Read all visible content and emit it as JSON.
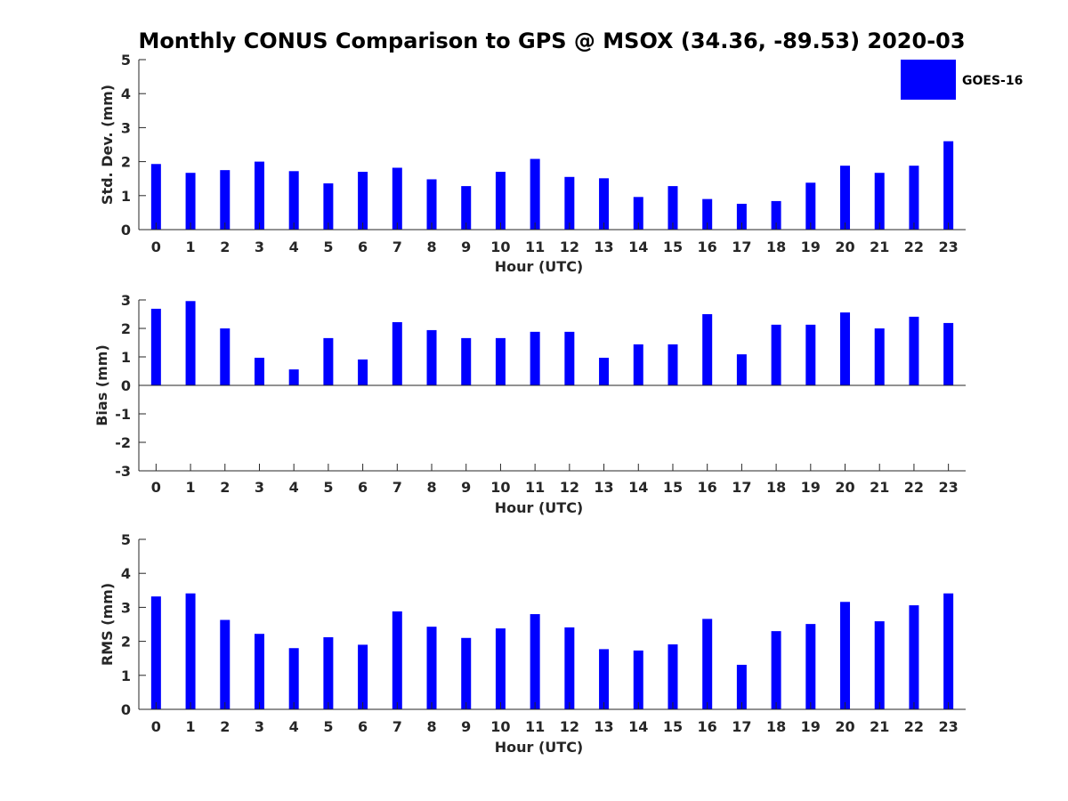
{
  "title": "Monthly CONUS Comparison to GPS @ MSOX (34.36, -89.53) 2020-03",
  "legend": {
    "label": "GOES-16",
    "color": "#0000ff"
  },
  "chart_data": [
    {
      "type": "bar",
      "name": "std_dev",
      "title": "Monthly CONUS Comparison to GPS @ MSOX (34.36, -89.53) 2020-03",
      "xlabel": "Hour (UTC)",
      "ylabel": "Std. Dev. (mm)",
      "ylim": [
        0,
        5
      ],
      "yticks": [
        "0",
        "1",
        "2",
        "3",
        "4",
        "5"
      ],
      "categories": [
        "0",
        "1",
        "2",
        "3",
        "4",
        "5",
        "6",
        "7",
        "8",
        "9",
        "10",
        "11",
        "12",
        "13",
        "14",
        "15",
        "16",
        "17",
        "18",
        "19",
        "20",
        "21",
        "22",
        "23"
      ],
      "series": [
        {
          "name": "GOES-16",
          "color": "#0000ff",
          "values": [
            1.93,
            1.67,
            1.75,
            2.0,
            1.72,
            1.36,
            1.7,
            1.82,
            1.48,
            1.28,
            1.7,
            2.08,
            1.55,
            1.51,
            0.96,
            1.28,
            0.9,
            0.76,
            0.84,
            1.38,
            1.88,
            1.67,
            1.88,
            2.6
          ]
        }
      ],
      "legend_position": "top-right",
      "grid": false
    },
    {
      "type": "bar",
      "name": "bias",
      "xlabel": "Hour (UTC)",
      "ylabel": "Bias (mm)",
      "ylim": [
        -3,
        3
      ],
      "yticks": [
        "-3",
        "-2",
        "-1",
        "0",
        "1",
        "2",
        "3"
      ],
      "categories": [
        "0",
        "1",
        "2",
        "3",
        "4",
        "5",
        "6",
        "7",
        "8",
        "9",
        "10",
        "11",
        "12",
        "13",
        "14",
        "15",
        "16",
        "17",
        "18",
        "19",
        "20",
        "21",
        "22",
        "23"
      ],
      "series": [
        {
          "name": "GOES-16",
          "color": "#0000ff",
          "values": [
            2.69,
            2.96,
            2.0,
            0.97,
            0.56,
            1.66,
            0.91,
            2.22,
            1.94,
            1.66,
            1.66,
            1.88,
            1.88,
            0.97,
            1.44,
            1.44,
            2.5,
            1.09,
            2.13,
            2.13,
            2.56,
            2.0,
            2.41,
            2.19
          ]
        }
      ],
      "grid": false
    },
    {
      "type": "bar",
      "name": "rms",
      "xlabel": "Hour (UTC)",
      "ylabel": "RMS (mm)",
      "ylim": [
        0,
        5
      ],
      "yticks": [
        "0",
        "1",
        "2",
        "3",
        "4",
        "5"
      ],
      "categories": [
        "0",
        "1",
        "2",
        "3",
        "4",
        "5",
        "6",
        "7",
        "8",
        "9",
        "10",
        "11",
        "12",
        "13",
        "14",
        "15",
        "16",
        "17",
        "18",
        "19",
        "20",
        "21",
        "22",
        "23"
      ],
      "series": [
        {
          "name": "GOES-16",
          "color": "#0000ff",
          "values": [
            3.32,
            3.41,
            2.63,
            2.22,
            1.8,
            2.12,
            1.9,
            2.88,
            2.43,
            2.1,
            2.38,
            2.8,
            2.41,
            1.77,
            1.73,
            1.91,
            2.66,
            1.31,
            2.3,
            2.51,
            3.16,
            2.59,
            3.06,
            3.41
          ]
        }
      ],
      "grid": false
    }
  ]
}
